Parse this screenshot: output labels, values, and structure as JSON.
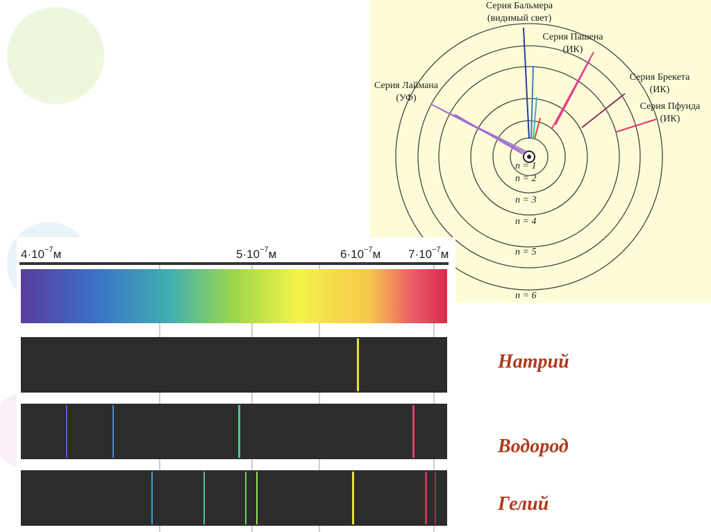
{
  "atom_diagram": {
    "series": [
      {
        "name": "Серия Бальмера",
        "range": "(видимый свет)"
      },
      {
        "name": "Серия Пашена",
        "range": "(ИК)"
      },
      {
        "name": "Серия Лаймана",
        "range": "(УФ)"
      },
      {
        "name": "Серия Брекета",
        "range": "(ИК)"
      },
      {
        "name": "Серия Пфунда",
        "range": "(ИК)"
      }
    ],
    "levels": [
      "n = 1",
      "n = 2",
      "n = 3",
      "n = 4",
      "n = 5",
      "n = 6"
    ]
  },
  "spectrum": {
    "scale_labels": [
      {
        "mantissa": "4·10",
        "exponent": "−7",
        "unit": "м"
      },
      {
        "mantissa": "5·10",
        "exponent": "−7",
        "unit": "м"
      },
      {
        "mantissa": "6·10",
        "exponent": "−7",
        "unit": "м"
      },
      {
        "mantissa": "7·10",
        "exponent": "−7",
        "unit": "м"
      }
    ]
  },
  "elements": [
    "Натрий",
    "Водород",
    "Гелий"
  ]
}
